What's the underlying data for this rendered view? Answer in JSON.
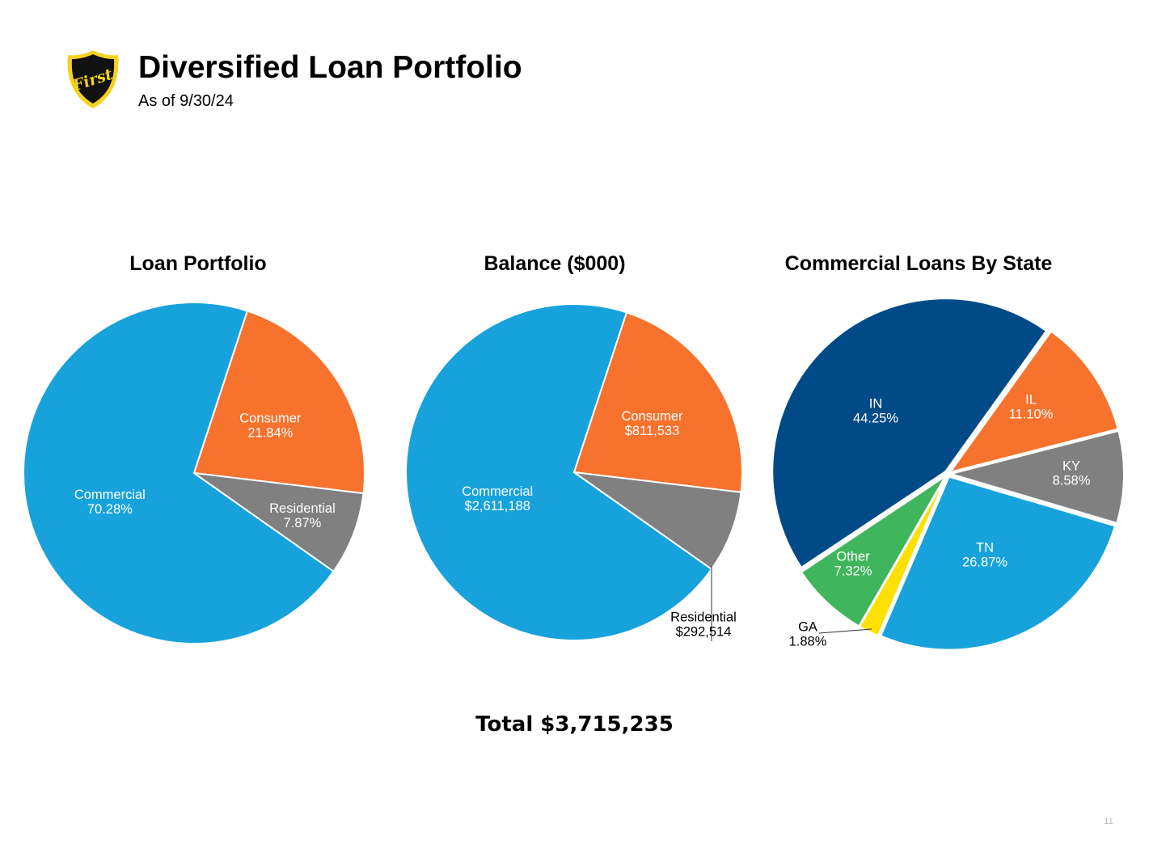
{
  "header": {
    "logo_text": "First",
    "title": "Diversified Loan Portfolio",
    "subtitle": "As of 9/30/24"
  },
  "colors": {
    "commercial": "#17a2dc",
    "consumer": "#f6722d",
    "residential": "#808080",
    "in_state": "#004b87",
    "il": "#f6722d",
    "ky": "#808080",
    "tn": "#17a2dc",
    "ga": "#fbe000",
    "other": "#3fb65b",
    "logo_gold": "#f5d21f",
    "logo_black": "#111111"
  },
  "chart_data": [
    {
      "type": "pie",
      "title": "Loan Portfolio",
      "slices": [
        {
          "label": "Commercial",
          "value": 70.28,
          "display": "70.28%",
          "color": "#17a2dc"
        },
        {
          "label": "Consumer",
          "value": 21.84,
          "display": "21.84%",
          "color": "#f6722d"
        },
        {
          "label": "Residential",
          "value": 7.87,
          "display": "7.87%",
          "color": "#808080"
        }
      ]
    },
    {
      "type": "pie",
      "title": "Balance ($000)",
      "slices": [
        {
          "label": "Commercial",
          "value": 2611188,
          "display": "$2,611,188",
          "color": "#17a2dc"
        },
        {
          "label": "Consumer",
          "value": 811533,
          "display": "$811,533",
          "color": "#f6722d"
        },
        {
          "label": "Residential",
          "value": 292514,
          "display": "$292,514",
          "color": "#808080"
        }
      ]
    },
    {
      "type": "pie",
      "title": "Commercial Loans By State",
      "slices": [
        {
          "label": "IN",
          "value": 44.25,
          "display": "44.25%",
          "color": "#004b87"
        },
        {
          "label": "IL",
          "value": 11.1,
          "display": "11.10%",
          "color": "#f6722d"
        },
        {
          "label": "KY",
          "value": 8.58,
          "display": "8.58%",
          "color": "#808080"
        },
        {
          "label": "TN",
          "value": 26.87,
          "display": "26.87%",
          "color": "#17a2dc"
        },
        {
          "label": "GA",
          "value": 1.88,
          "display": "1.88%",
          "color": "#fbe000"
        },
        {
          "label": "Other",
          "value": 7.32,
          "display": "7.32%",
          "color": "#3fb65b"
        }
      ]
    }
  ],
  "footer": {
    "total": "Total $3,715,235",
    "page_number": "11"
  }
}
